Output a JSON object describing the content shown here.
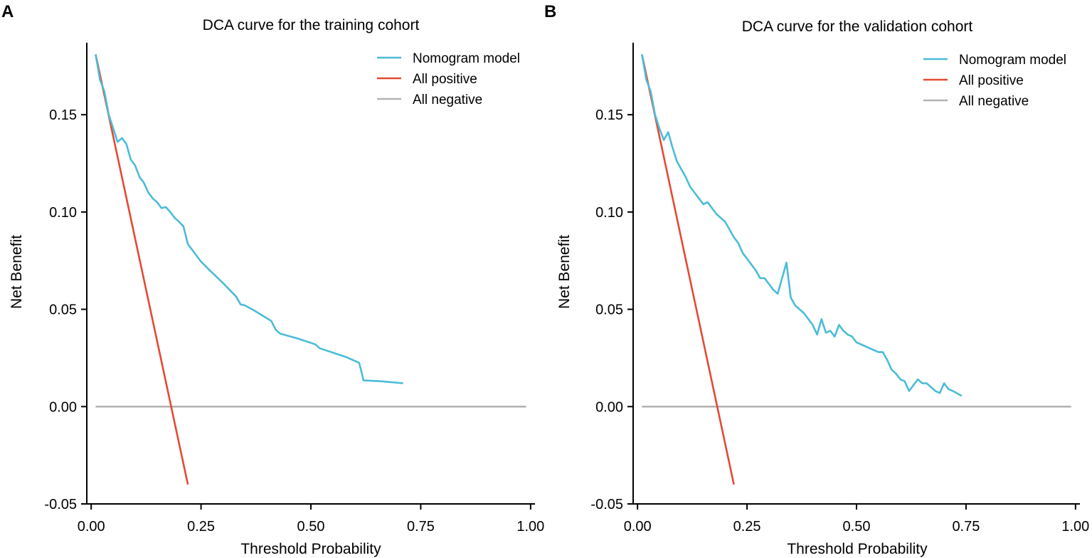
{
  "chart_data": [
    {
      "type": "line",
      "panel": "A",
      "title": "DCA curve for the training cohort",
      "xlabel": "Threshold Probability",
      "ylabel": "Net Benefit",
      "xlim": [
        -0.01,
        1.01
      ],
      "ylim": [
        -0.05,
        0.187
      ],
      "xticks": [
        0.0,
        0.25,
        0.5,
        0.75,
        1.0
      ],
      "xtick_labels": [
        "0.00",
        "0.25",
        "0.50",
        "0.75",
        "1.00"
      ],
      "yticks": [
        -0.05,
        0.0,
        0.05,
        0.1,
        0.15
      ],
      "ytick_labels": [
        "-0.05",
        "0.00",
        "0.05",
        "0.10",
        "0.15"
      ],
      "legend_position": "top-right",
      "series": [
        {
          "name": "Nomogram model",
          "color": "#4bbcd8",
          "x": [
            0.01,
            0.02,
            0.03,
            0.04,
            0.05,
            0.06,
            0.07,
            0.08,
            0.09,
            0.1,
            0.11,
            0.12,
            0.13,
            0.14,
            0.15,
            0.16,
            0.17,
            0.18,
            0.19,
            0.2,
            0.21,
            0.22,
            0.25,
            0.27,
            0.3,
            0.33,
            0.34,
            0.35,
            0.37,
            0.41,
            0.42,
            0.43,
            0.47,
            0.51,
            0.52,
            0.58,
            0.61,
            0.62,
            0.66,
            0.71
          ],
          "y": [
            0.181,
            0.168,
            0.162,
            0.15,
            0.143,
            0.136,
            0.138,
            0.135,
            0.127,
            0.124,
            0.118,
            0.115,
            0.11,
            0.107,
            0.105,
            0.102,
            0.1025,
            0.1,
            0.097,
            0.095,
            0.0925,
            0.0835,
            0.0745,
            0.07,
            0.0635,
            0.0565,
            0.0525,
            0.052,
            0.0495,
            0.044,
            0.0395,
            0.0375,
            0.035,
            0.032,
            0.03,
            0.0255,
            0.0225,
            0.0135,
            0.013,
            0.012
          ]
        },
        {
          "name": "All positive",
          "color": "#e34a33",
          "x": [
            0.01,
            0.22
          ],
          "y": [
            0.181,
            -0.04
          ]
        },
        {
          "name": "All negative",
          "color": "#b3b3b3",
          "x": [
            0.01,
            0.99
          ],
          "y": [
            0.0,
            0.0
          ]
        }
      ]
    },
    {
      "type": "line",
      "panel": "B",
      "title": "DCA curve for the validation cohort",
      "xlabel": "Threshold Probability",
      "ylabel": "Net Benefit",
      "xlim": [
        -0.01,
        1.01
      ],
      "ylim": [
        -0.05,
        0.187
      ],
      "xticks": [
        0.0,
        0.25,
        0.5,
        0.75,
        1.0
      ],
      "xtick_labels": [
        "0.00",
        "0.25",
        "0.50",
        "0.75",
        "1.00"
      ],
      "yticks": [
        -0.05,
        0.0,
        0.05,
        0.1,
        0.15
      ],
      "ytick_labels": [
        "-0.05",
        "0.00",
        "0.05",
        "0.10",
        "0.15"
      ],
      "legend_position": "top-right",
      "series": [
        {
          "name": "Nomogram model",
          "color": "#4bbcd8",
          "x": [
            0.01,
            0.02,
            0.03,
            0.04,
            0.05,
            0.06,
            0.07,
            0.08,
            0.09,
            0.1,
            0.11,
            0.12,
            0.13,
            0.14,
            0.15,
            0.16,
            0.17,
            0.18,
            0.19,
            0.2,
            0.21,
            0.22,
            0.23,
            0.24,
            0.25,
            0.26,
            0.27,
            0.28,
            0.29,
            0.3,
            0.31,
            0.32,
            0.33,
            0.34,
            0.35,
            0.36,
            0.37,
            0.38,
            0.39,
            0.4,
            0.41,
            0.42,
            0.43,
            0.44,
            0.45,
            0.46,
            0.47,
            0.48,
            0.49,
            0.5,
            0.51,
            0.52,
            0.53,
            0.54,
            0.55,
            0.56,
            0.57,
            0.58,
            0.59,
            0.6,
            0.61,
            0.62,
            0.63,
            0.64,
            0.65,
            0.66,
            0.67,
            0.68,
            0.69,
            0.7,
            0.71,
            0.72,
            0.74
          ],
          "y": [
            0.181,
            0.168,
            0.162,
            0.15,
            0.143,
            0.137,
            0.141,
            0.133,
            0.126,
            0.122,
            0.118,
            0.113,
            0.11,
            0.107,
            0.104,
            0.105,
            0.102,
            0.099,
            0.097,
            0.095,
            0.091,
            0.087,
            0.084,
            0.079,
            0.076,
            0.073,
            0.07,
            0.066,
            0.066,
            0.063,
            0.06,
            0.058,
            0.066,
            0.074,
            0.056,
            0.052,
            0.05,
            0.048,
            0.045,
            0.042,
            0.037,
            0.045,
            0.038,
            0.039,
            0.036,
            0.042,
            0.039,
            0.037,
            0.036,
            0.033,
            0.032,
            0.031,
            0.03,
            0.029,
            0.028,
            0.028,
            0.024,
            0.019,
            0.017,
            0.014,
            0.013,
            0.008,
            0.011,
            0.014,
            0.012,
            0.012,
            0.01,
            0.008,
            0.007,
            0.012,
            0.009,
            0.008,
            0.0055
          ]
        },
        {
          "name": "All positive",
          "color": "#e34a33",
          "x": [
            0.01,
            0.22
          ],
          "y": [
            0.181,
            -0.04
          ]
        },
        {
          "name": "All negative",
          "color": "#b3b3b3",
          "x": [
            0.01,
            0.99
          ],
          "y": [
            0.0,
            0.0
          ]
        }
      ]
    }
  ]
}
